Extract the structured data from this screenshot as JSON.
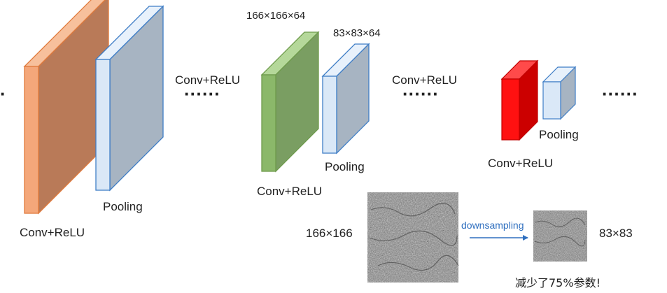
{
  "layers": {
    "conv1": {
      "label": "Conv+ReLU"
    },
    "pool1": {
      "label": "Pooling"
    },
    "conv2": {
      "label": "Conv+ReLU",
      "dims": "166×166×64"
    },
    "pool2": {
      "label": "Pooling",
      "dims": "83×83×64"
    },
    "conv3": {
      "label": "Conv+ReLU"
    },
    "pool3": {
      "label": "Pooling"
    }
  },
  "transitions": {
    "t1": {
      "label": "Conv+ReLU",
      "dots": "······"
    },
    "t2": {
      "label": "Conv+ReLU",
      "dots": "······"
    },
    "t3": {
      "dots": "······"
    },
    "lead": {
      "dots": "·"
    }
  },
  "example": {
    "input_size": "166×166",
    "arrow_label": "downsampling",
    "output_size": "83×83",
    "caption": "减少了75%参数!"
  },
  "colors": {
    "conv1": "#f4a77a",
    "pool": "#dae8f7",
    "conv2": "#8bb86a",
    "conv3": "#ff1111",
    "pool_stroke": "#3f7ec6",
    "arrow": "#2f6fbf"
  }
}
